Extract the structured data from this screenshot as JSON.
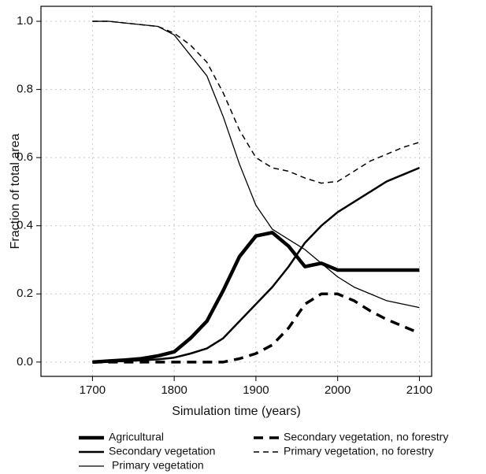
{
  "chart_data": {
    "type": "line",
    "x_label": "Simulation time (years)",
    "y_label": "Fraction of total area",
    "x": [
      1700,
      1720,
      1740,
      1760,
      1780,
      1800,
      1820,
      1840,
      1860,
      1880,
      1900,
      1920,
      1940,
      1960,
      1980,
      2000,
      2020,
      2040,
      2060,
      2080,
      2100
    ],
    "series": [
      {
        "name": "Agricultural",
        "color": "#000000",
        "width": 4.5,
        "dash": "none",
        "values": [
          0,
          0.003,
          0.006,
          0.01,
          0.018,
          0.03,
          0.07,
          0.12,
          0.21,
          0.31,
          0.37,
          0.38,
          0.34,
          0.28,
          0.29,
          0.27,
          0.27,
          0.27,
          0.27,
          0.27,
          0.27
        ]
      },
      {
        "name": "Secondary vegetation",
        "color": "#000000",
        "width": 2.5,
        "dash": "none",
        "values": [
          0,
          0.001,
          0.003,
          0.005,
          0.008,
          0.013,
          0.025,
          0.04,
          0.07,
          0.12,
          0.17,
          0.22,
          0.28,
          0.35,
          0.4,
          0.44,
          0.47,
          0.5,
          0.53,
          0.55,
          0.57
        ]
      },
      {
        "name": "Primary vegetation",
        "color": "#000000",
        "width": 1.3,
        "dash": "none",
        "values": [
          1.0,
          1.0,
          0.995,
          0.99,
          0.985,
          0.96,
          0.9,
          0.84,
          0.72,
          0.58,
          0.46,
          0.39,
          0.36,
          0.33,
          0.29,
          0.25,
          0.22,
          0.2,
          0.18,
          0.17,
          0.16
        ]
      },
      {
        "name": "Secondary vegetation, no forestry",
        "color": "#000000",
        "width": 3.5,
        "dash": "12 8",
        "values": [
          0,
          0,
          0,
          0,
          0,
          0,
          0,
          0,
          0,
          0.01,
          0.025,
          0.05,
          0.1,
          0.17,
          0.2,
          0.2,
          0.18,
          0.15,
          0.125,
          0.105,
          0.085
        ]
      },
      {
        "name": "Primary vegetation, no forestry",
        "color": "#000000",
        "width": 1.5,
        "dash": "7 5",
        "values": [
          1.0,
          1.0,
          0.995,
          0.99,
          0.985,
          0.965,
          0.93,
          0.88,
          0.79,
          0.68,
          0.6,
          0.57,
          0.56,
          0.54,
          0.525,
          0.53,
          0.56,
          0.59,
          0.61,
          0.63,
          0.645
        ]
      }
    ],
    "xlim": [
      1637,
      2115
    ],
    "ylim": [
      -0.042,
      1.044
    ],
    "xticks": [
      1700,
      1800,
      1900,
      2000,
      2100
    ],
    "yticks": [
      {
        "value": 0,
        "label": "0.0"
      },
      {
        "value": 0.2,
        "label": "0.2"
      },
      {
        "value": 0.4,
        "label": "0.4"
      },
      {
        "value": 0.6,
        "label": "0.6"
      },
      {
        "value": 0.8,
        "label": "0.8"
      },
      {
        "value": 1.0,
        "label": "1.0"
      }
    ],
    "grid": true
  }
}
